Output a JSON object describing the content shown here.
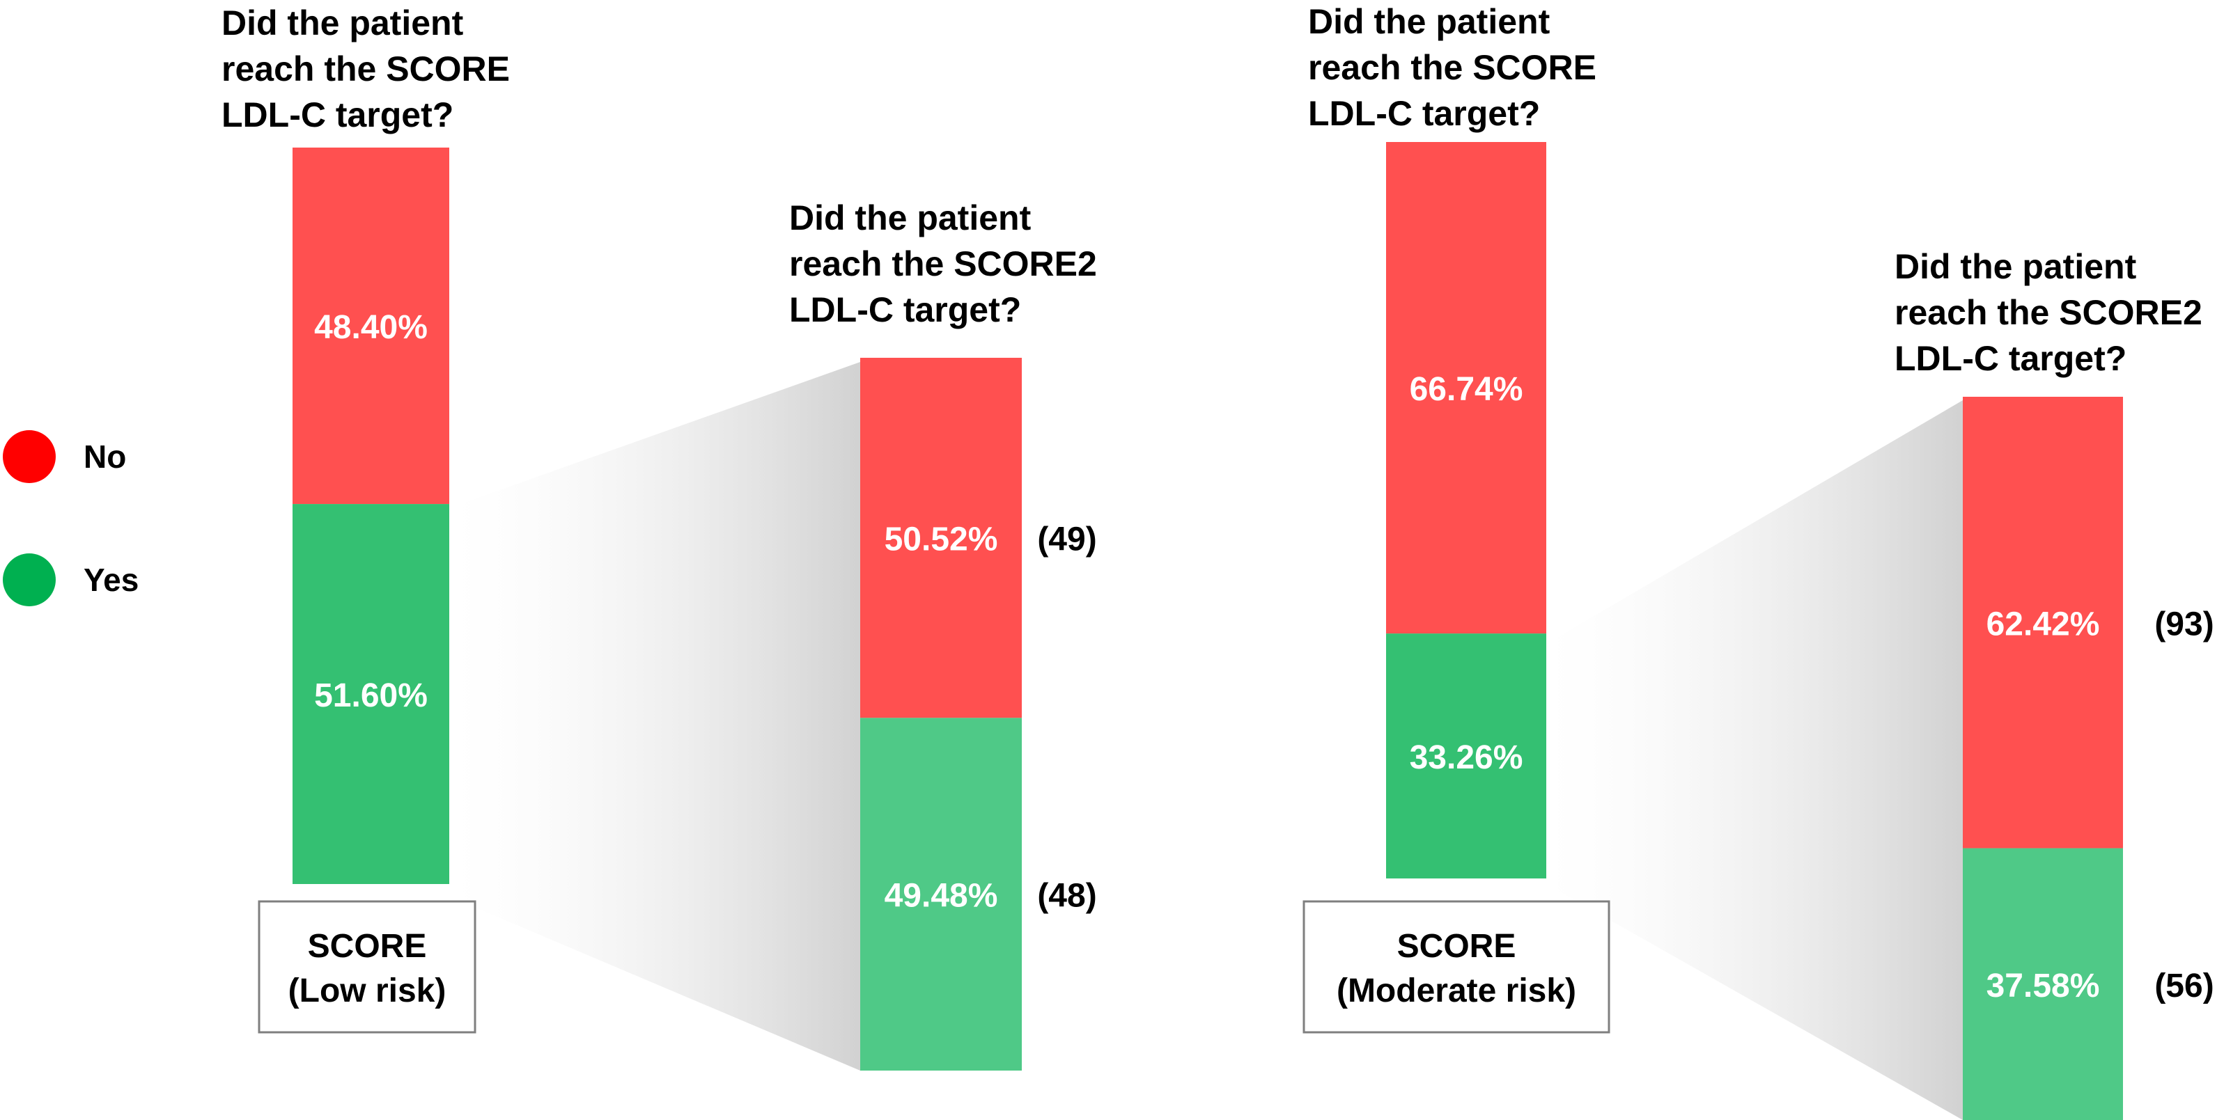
{
  "legend": {
    "items": [
      {
        "label": "No",
        "color": "#FF0000"
      },
      {
        "label": "Yes",
        "color": "#00B050"
      }
    ]
  },
  "colors": {
    "no_bar": "#FF5050",
    "yes_bar": "#34C072",
    "yes_bar_light": "#4FC987",
    "label_text": "#ffffff",
    "funnel": "#d9d9d9"
  },
  "chart_data": [
    {
      "type": "bar",
      "stacked": true,
      "title": "Did the patient reach the SCORE LDL-C target?",
      "title_lines": [
        "Did the patient",
        "reach the SCORE",
        "LDL-C target?"
      ],
      "category_lines": [
        "SCORE",
        "(Low risk)"
      ],
      "series": [
        {
          "name": "No",
          "value": 48.4,
          "label": "48.40%"
        },
        {
          "name": "Yes",
          "value": 51.6,
          "label": "51.60%"
        }
      ],
      "ylim": [
        0,
        100
      ]
    },
    {
      "type": "bar",
      "stacked": true,
      "title": "Did the patient reach the SCORE2 LDL-C target?",
      "title_lines": [
        "Did the patient",
        "reach the SCORE2",
        "LDL-C target?"
      ],
      "series": [
        {
          "name": "No",
          "value": 50.52,
          "label": "50.52%",
          "count": "(49)"
        },
        {
          "name": "Yes",
          "value": 49.48,
          "label": "49.48%",
          "count": "(48)"
        }
      ],
      "ylim": [
        0,
        100
      ]
    },
    {
      "type": "bar",
      "stacked": true,
      "title": "Did the patient reach the SCORE LDL-C target?",
      "title_lines": [
        "Did the patient",
        "reach the SCORE",
        "LDL-C target?"
      ],
      "category_lines": [
        "SCORE",
        "(Moderate risk)"
      ],
      "series": [
        {
          "name": "No",
          "value": 66.74,
          "label": "66.74%"
        },
        {
          "name": "Yes",
          "value": 33.26,
          "label": "33.26%"
        }
      ],
      "ylim": [
        0,
        100
      ]
    },
    {
      "type": "bar",
      "stacked": true,
      "title": "Did the patient reach the SCORE2 LDL-C target?",
      "title_lines": [
        "Did the patient",
        "reach the SCORE2",
        "LDL-C target?"
      ],
      "series": [
        {
          "name": "No",
          "value": 62.42,
          "label": "62.42%",
          "count": "(93)"
        },
        {
          "name": "Yes",
          "value": 37.58,
          "label": "37.58%",
          "count": "(56)"
        }
      ],
      "ylim": [
        0,
        100
      ]
    }
  ]
}
